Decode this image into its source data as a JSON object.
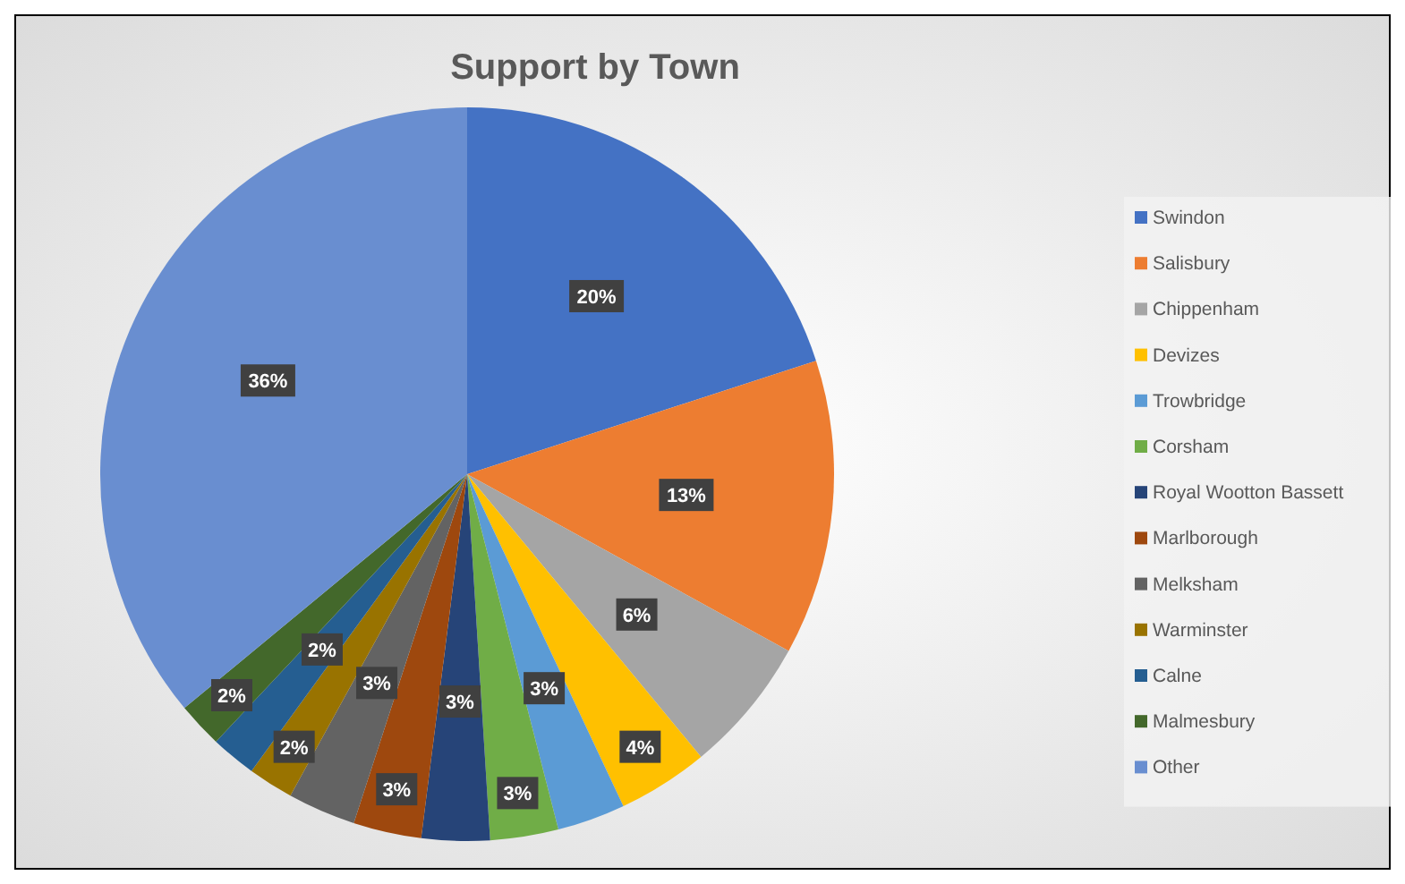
{
  "chart_data": {
    "type": "pie",
    "title": "Support by Town",
    "categories": [
      "Swindon",
      "Salisbury",
      "Chippenham",
      "Devizes",
      "Trowbridge",
      "Corsham",
      "Royal Wootton Bassett",
      "Marlborough",
      "Melksham",
      "Warminster",
      "Calne",
      "Malmesbury",
      "Other"
    ],
    "values": [
      20,
      13,
      6,
      4,
      3,
      3,
      3,
      3,
      3,
      2,
      2,
      2,
      36
    ],
    "value_labels": [
      "20%",
      "13%",
      "6%",
      "4%",
      "3%",
      "3%",
      "3%",
      "3%",
      "3%",
      "2%",
      "2%",
      "2%",
      "36%"
    ],
    "colors": [
      "#4472c4",
      "#ed7d31",
      "#a5a5a5",
      "#ffc000",
      "#5b9bd5",
      "#70ad47",
      "#264478",
      "#9e480e",
      "#636363",
      "#997300",
      "#255e91",
      "#43682b",
      "#698ed0"
    ],
    "legend": "right"
  }
}
